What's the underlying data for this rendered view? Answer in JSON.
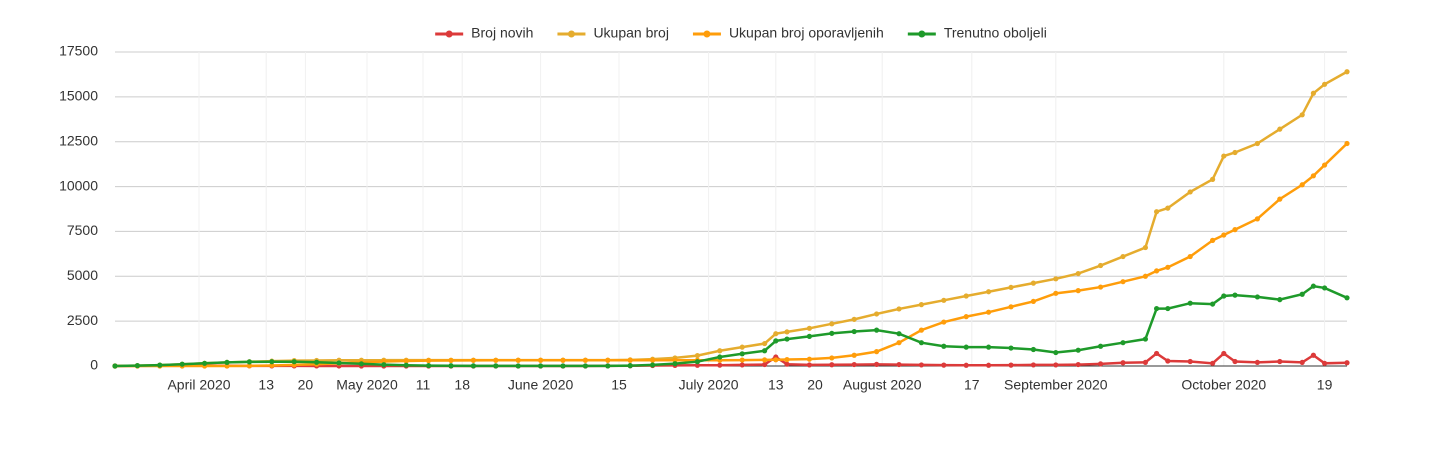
{
  "chart_data": {
    "type": "line",
    "x": [
      "2020-03-17",
      "2020-03-21",
      "2020-03-25",
      "2020-03-29",
      "2020-04-02",
      "2020-04-06",
      "2020-04-10",
      "2020-04-14",
      "2020-04-18",
      "2020-04-22",
      "2020-04-26",
      "2020-04-30",
      "2020-05-04",
      "2020-05-08",
      "2020-05-12",
      "2020-05-16",
      "2020-05-20",
      "2020-05-24",
      "2020-05-28",
      "2020-06-01",
      "2020-06-05",
      "2020-06-09",
      "2020-06-13",
      "2020-06-17",
      "2020-06-21",
      "2020-06-25",
      "2020-06-29",
      "2020-07-03",
      "2020-07-07",
      "2020-07-11",
      "2020-07-13",
      "2020-07-15",
      "2020-07-19",
      "2020-07-23",
      "2020-07-27",
      "2020-07-31",
      "2020-08-04",
      "2020-08-08",
      "2020-08-12",
      "2020-08-16",
      "2020-08-20",
      "2020-08-24",
      "2020-08-28",
      "2020-09-01",
      "2020-09-05",
      "2020-09-09",
      "2020-09-13",
      "2020-09-17",
      "2020-09-19",
      "2020-09-21",
      "2020-09-25",
      "2020-09-29",
      "2020-10-01",
      "2020-10-03",
      "2020-10-07",
      "2020-10-11",
      "2020-10-15",
      "2020-10-17",
      "2020-10-19",
      "2020-10-23"
    ],
    "series": [
      {
        "name": "Broj novih",
        "color": "#dc3a3a",
        "values": [
          0,
          5,
          15,
          20,
          20,
          15,
          10,
          5,
          5,
          3,
          2,
          1,
          0,
          0,
          0,
          0,
          0,
          0,
          0,
          0,
          0,
          0,
          5,
          15,
          25,
          35,
          40,
          45,
          60,
          80,
          500,
          100,
          60,
          70,
          80,
          90,
          80,
          60,
          50,
          40,
          40,
          50,
          60,
          60,
          80,
          120,
          180,
          200,
          700,
          280,
          250,
          150,
          700,
          250,
          200,
          250,
          200,
          600,
          150,
          180
        ]
      },
      {
        "name": "Ukupan broj",
        "color": "#e5ac2e",
        "values": [
          0,
          20,
          50,
          100,
          150,
          200,
          240,
          270,
          300,
          310,
          320,
          322,
          324,
          324,
          324,
          324,
          324,
          324,
          324,
          324,
          324,
          324,
          324,
          340,
          380,
          450,
          580,
          850,
          1050,
          1250,
          1800,
          1900,
          2100,
          2350,
          2600,
          2900,
          3180,
          3420,
          3660,
          3900,
          4140,
          4380,
          4620,
          4860,
          5150,
          5600,
          6100,
          6600,
          8600,
          8800,
          9700,
          10400,
          11700,
          11900,
          12400,
          13200,
          14000,
          15200,
          15700,
          16400
        ]
      },
      {
        "name": "Ukupan broj oporavljenih",
        "color": "#ff9d0a",
        "values": [
          0,
          0,
          0,
          0,
          0,
          0,
          10,
          30,
          60,
          100,
          150,
          200,
          250,
          280,
          300,
          310,
          315,
          318,
          320,
          320,
          320,
          320,
          320,
          320,
          320,
          320,
          320,
          320,
          330,
          340,
          345,
          360,
          380,
          450,
          600,
          800,
          1300,
          2000,
          2450,
          2750,
          3000,
          3300,
          3600,
          4050,
          4200,
          4400,
          4700,
          5000,
          5300,
          5500,
          6100,
          7000,
          7300,
          7600,
          8200,
          9300,
          10100,
          10600,
          11200,
          12400
        ]
      },
      {
        "name": "Trenutno oboljeli",
        "color": "#1e9a2a",
        "values": [
          0,
          20,
          50,
          100,
          150,
          200,
          230,
          240,
          240,
          210,
          170,
          122,
          74,
          44,
          24,
          14,
          9,
          6,
          4,
          4,
          4,
          4,
          4,
          20,
          60,
          130,
          240,
          500,
          680,
          850,
          1400,
          1500,
          1650,
          1820,
          1920,
          2000,
          1800,
          1300,
          1100,
          1050,
          1050,
          1000,
          920,
          750,
          880,
          1100,
          1300,
          1500,
          3200,
          3200,
          3500,
          3450,
          3900,
          3950,
          3850,
          3700,
          4000,
          4450,
          4350,
          3800
        ]
      }
    ],
    "xlim": [
      "2020-03-17",
      "2020-10-23"
    ],
    "xticks": [
      {
        "value": "2020-04-01",
        "label": "April 2020"
      },
      {
        "value": "2020-04-13",
        "label": "13"
      },
      {
        "value": "2020-04-20",
        "label": "20"
      },
      {
        "value": "2020-05-01",
        "label": "May 2020"
      },
      {
        "value": "2020-05-11",
        "label": "11"
      },
      {
        "value": "2020-05-18",
        "label": "18"
      },
      {
        "value": "2020-06-01",
        "label": "June 2020"
      },
      {
        "value": "2020-06-15",
        "label": "15"
      },
      {
        "value": "2020-07-01",
        "label": "July 2020"
      },
      {
        "value": "2020-07-13",
        "label": "13"
      },
      {
        "value": "2020-07-20",
        "label": "20"
      },
      {
        "value": "2020-08-01",
        "label": "August 2020"
      },
      {
        "value": "2020-08-17",
        "label": "17"
      },
      {
        "value": "2020-09-01",
        "label": "September 2020"
      },
      {
        "value": "2020-10-01",
        "label": "October 2020"
      },
      {
        "value": "2020-10-19",
        "label": "19"
      }
    ],
    "ylim": [
      0,
      17500
    ],
    "yticks": [
      0,
      2500,
      5000,
      7500,
      10000,
      12500,
      15000,
      17500
    ],
    "grid": true,
    "legend": "top"
  }
}
